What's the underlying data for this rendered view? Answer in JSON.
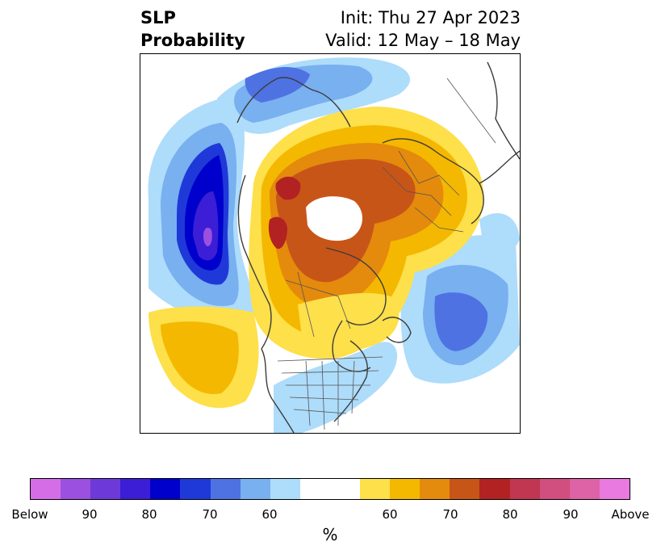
{
  "title": {
    "left_line1": "SLP",
    "left_line2": "Probability",
    "right_line1": "Init: Thu 27 Apr 2023",
    "right_line2": "Valid: 12 May – 18 May"
  },
  "map": {
    "projection": "north-polar-stereographic",
    "fill_field": "SLP probability (%)",
    "boundaries": [
      "coastlines",
      "country-borders",
      "us-state-borders"
    ]
  },
  "colorbar": {
    "unit": "%",
    "colors": [
      "#d46de6",
      "#9b50df",
      "#6d3ad9",
      "#3b1ed6",
      "#0000cc",
      "#1f39d9",
      "#4f72e3",
      "#78b0f0",
      "#aedcfb",
      "#ffffff",
      "#fde04a",
      "#f4b800",
      "#e48a0d",
      "#c85518",
      "#b22222",
      "#c13650",
      "#d04f7e",
      "#dd62a6",
      "#e87ae0"
    ],
    "tick_labels": [
      "Below",
      "90",
      "80",
      "70",
      "60",
      "60",
      "70",
      "80",
      "90",
      "Above"
    ]
  }
}
